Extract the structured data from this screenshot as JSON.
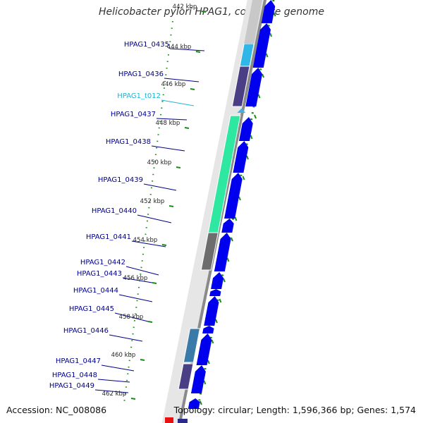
{
  "title": "Helicobacter pylori HPAG1, complete genome",
  "footer": {
    "accession": "Accession: NC_008086",
    "topology": "Topology: circular; Length: 1,596,366 bp; Genes: 1,574"
  },
  "colors": {
    "cds_arrow": "#0000ee",
    "gene_label": "#00008b",
    "trna_label": "#1fb6d0",
    "tick": "#1a8a1a",
    "backbone": "#909090"
  },
  "genes": [
    {
      "id": "HPAG1_0435",
      "color": "#30b7e8",
      "type": "CDS"
    },
    {
      "id": "HPAG1_0436",
      "color": "#4a3f84",
      "type": "CDS"
    },
    {
      "id": "HPAG1_t012",
      "color": "#45aee0",
      "type": "tRNA"
    },
    {
      "id": "HPAG1_0437",
      "color": "#2ee8a2",
      "type": "CDS"
    },
    {
      "id": "HPAG1_0438",
      "color": "#2ee8a2",
      "type": "CDS"
    },
    {
      "id": "HPAG1_0439",
      "color": "#2ee8a2",
      "type": "CDS"
    },
    {
      "id": "HPAG1_0440",
      "color": "#2ee8a2",
      "type": "CDS"
    },
    {
      "id": "HPAG1_0441",
      "color": "#6d6d6d",
      "type": "CDS"
    },
    {
      "id": "HPAG1_0442",
      "color": "#ffffff",
      "type": "CDS"
    },
    {
      "id": "HPAG1_0443",
      "color": "#ffffff",
      "type": "CDS"
    },
    {
      "id": "HPAG1_0444",
      "color": "#ffffff",
      "type": "CDS"
    },
    {
      "id": "HPAG1_0445",
      "color": "#ffffff",
      "type": "CDS"
    },
    {
      "id": "HPAG1_0446",
      "color": "#3a7aa8",
      "type": "CDS"
    },
    {
      "id": "HPAG1_0447",
      "color": "#4a3f84",
      "type": "CDS"
    },
    {
      "id": "HPAG1_0448",
      "color": "#ffffff",
      "type": "CDS"
    },
    {
      "id": "HPAG1_0449",
      "color": "#ffffff",
      "type": "CDS"
    }
  ],
  "ticks": [
    "442 kbp",
    "444 kbp",
    "446 kbp",
    "448 kbp",
    "450 kbp",
    "452 kbp",
    "454 kbp",
    "456 kbp",
    "458 kbp",
    "460 kbp",
    "462 kbp"
  ]
}
